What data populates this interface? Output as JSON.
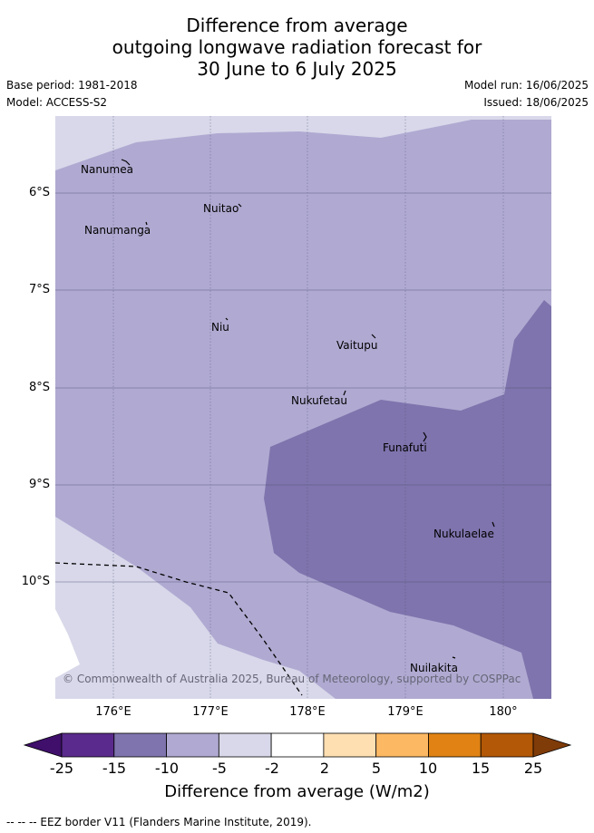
{
  "title": {
    "line1": "Difference from average",
    "line2": "outgoing longwave radiation forecast for",
    "line3": "30 June to 6 July 2025"
  },
  "meta": {
    "base_period": "Base period: 1981-2018",
    "model": "Model: ACCESS-S2",
    "model_run": "Model run: 16/06/2025",
    "issued": "Issued: 18/06/2025"
  },
  "map": {
    "lat_labels": [
      "6°S",
      "7°S",
      "8°S",
      "9°S",
      "10°S"
    ],
    "lon_labels": [
      "176°E",
      "177°E",
      "178°E",
      "179°E",
      "180°"
    ],
    "places": [
      {
        "name": "Nanumea"
      },
      {
        "name": "Nuitao"
      },
      {
        "name": "Nanumanga"
      },
      {
        "name": "Niu"
      },
      {
        "name": "Vaitupu"
      },
      {
        "name": "Nukufetau"
      },
      {
        "name": "Funafuti"
      },
      {
        "name": "Nukulaelae"
      },
      {
        "name": "Nuilakita"
      }
    ],
    "copyright": "© Commonwealth of Australia 2025, Bureau of Meteorology, supported by COSPPac",
    "colors": {
      "light_lavender": "#d8d8ea",
      "lavender": "#b0aad2",
      "purple": "#7f74ad",
      "eez_border": "#000000",
      "gridline": "#555577"
    }
  },
  "colorbar": {
    "ticks": [
      "-25",
      "-15",
      "-10",
      "-5",
      "-2",
      "2",
      "5",
      "10",
      "15",
      "25"
    ],
    "colors": [
      "#3f0f6b",
      "#5a2a8c",
      "#7f74ad",
      "#b0aad2",
      "#d8d8ea",
      "#ffffff",
      "#fedfb2",
      "#fdb863",
      "#e08214",
      "#b35806",
      "#7f3b08"
    ],
    "title": "Difference from average (W/m2)"
  },
  "legend_note": "-- -- -- EEZ border V11 (Flanders Marine Institute, 2019)."
}
